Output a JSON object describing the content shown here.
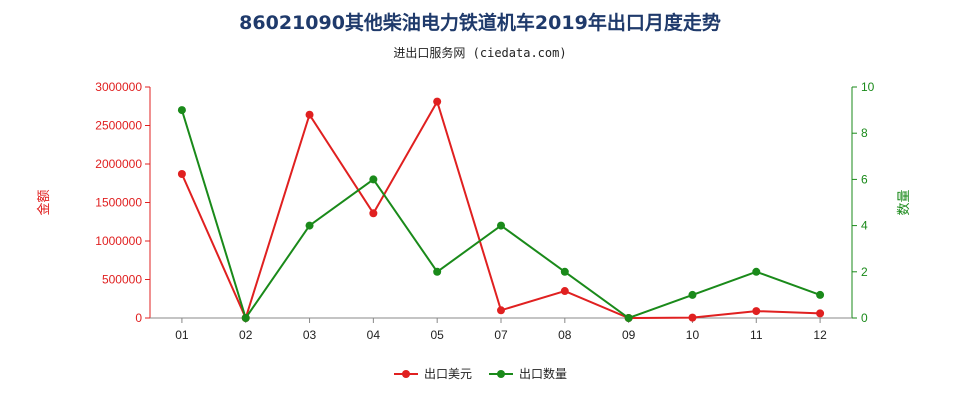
{
  "title": "86021090其他柴油电力铁道机车2019年出口月度走势",
  "subtitle": "进出口服务网 (ciedata.com)",
  "chart_data": {
    "type": "line",
    "categories": [
      "01",
      "02",
      "03",
      "04",
      "05",
      "07",
      "08",
      "09",
      "10",
      "11",
      "12"
    ],
    "y_left": {
      "label": "金额",
      "range": [
        0,
        3000000
      ],
      "ticks": [
        "0",
        "500000",
        "1000000",
        "1500000",
        "2000000",
        "2500000",
        "3000000"
      ]
    },
    "y_right": {
      "label": "数量",
      "range": [
        0,
        10
      ],
      "ticks": [
        "0",
        "2",
        "4",
        "6",
        "8",
        "10"
      ]
    },
    "series": [
      {
        "name": "出口美元",
        "axis": "left",
        "color": "#e02020",
        "values": [
          1870000,
          0,
          2640000,
          1360000,
          2810000,
          100000,
          350000,
          0,
          5000,
          90000,
          60000
        ]
      },
      {
        "name": "出口数量",
        "axis": "right",
        "color": "#1a8a1a",
        "values": [
          9,
          0,
          4,
          6,
          2,
          4,
          2,
          0,
          1,
          2,
          1
        ]
      }
    ],
    "left_axis_color": "#e02020",
    "right_axis_color": "#1a8a1a",
    "legend": "bottom-center",
    "grid": false
  }
}
